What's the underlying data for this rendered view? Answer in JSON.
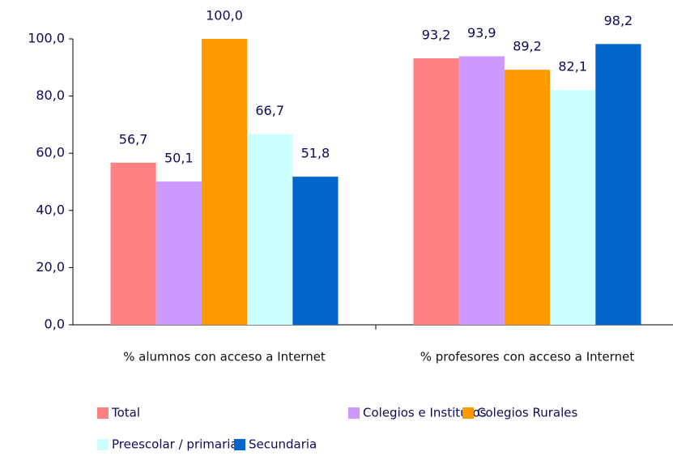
{
  "chart_data": {
    "type": "bar",
    "categories": [
      "% alumnos con acceso a Internet",
      "% profesores con acceso a Internet"
    ],
    "series": [
      {
        "name": "Total",
        "color": "#ff8080",
        "values": [
          56.7,
          93.2
        ],
        "value_labels": [
          "56,7",
          "93,2"
        ]
      },
      {
        "name": "Colegios e Institutos",
        "color": "#cc99ff",
        "values": [
          50.1,
          93.9
        ],
        "value_labels": [
          "50,1",
          "93,9"
        ]
      },
      {
        "name": "Colegios Rurales",
        "color": "#ff9900",
        "values": [
          100.0,
          89.2
        ],
        "value_labels": [
          "100,0",
          "89,2"
        ]
      },
      {
        "name": "Preescolar / primaria",
        "color": "#ccffff",
        "values": [
          66.7,
          82.1
        ],
        "value_labels": [
          "66,7",
          "82,1"
        ]
      },
      {
        "name": "Secundaria",
        "color": "#0066cc",
        "values": [
          51.8,
          98.2
        ],
        "value_labels": [
          "51,8",
          "98,2"
        ]
      }
    ],
    "ylim": [
      0,
      100
    ],
    "yticks": [
      {
        "value": 0,
        "label": "0,0"
      },
      {
        "value": 20,
        "label": "20,0"
      },
      {
        "value": 40,
        "label": "40,0"
      },
      {
        "value": 60,
        "label": "60,0"
      },
      {
        "value": 80,
        "label": "80,0"
      },
      {
        "value": 100,
        "label": "100,0"
      }
    ],
    "legend": "bottom",
    "grid": false
  }
}
